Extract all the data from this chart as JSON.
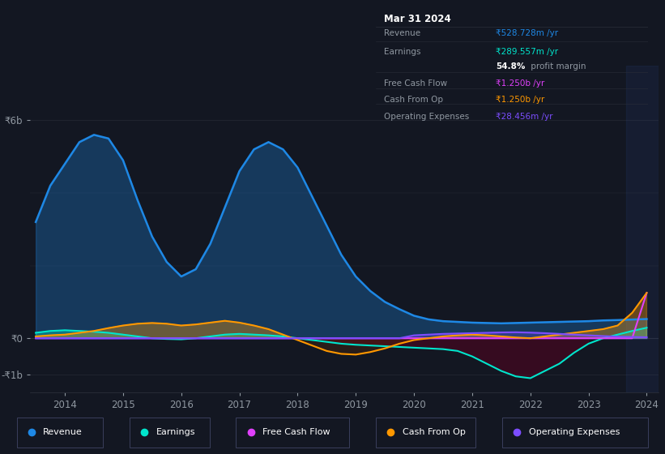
{
  "background_color": "#131722",
  "plot_bg_color": "#131722",
  "chart_bg_color": "#1a2035",
  "grid_color": "#2a2e39",
  "text_color": "#9098a1",
  "title_color": "#ffffff",
  "years": [
    2013.5,
    2013.75,
    2014.0,
    2014.25,
    2014.5,
    2014.75,
    2015.0,
    2015.25,
    2015.5,
    2015.75,
    2016.0,
    2016.25,
    2016.5,
    2016.75,
    2017.0,
    2017.25,
    2017.5,
    2017.75,
    2018.0,
    2018.25,
    2018.5,
    2018.75,
    2019.0,
    2019.25,
    2019.5,
    2019.75,
    2020.0,
    2020.25,
    2020.5,
    2020.75,
    2021.0,
    2021.25,
    2021.5,
    2021.75,
    2022.0,
    2022.25,
    2022.5,
    2022.75,
    2023.0,
    2023.25,
    2023.5,
    2023.75,
    2024.0
  ],
  "revenue": [
    3200000000,
    4200000000,
    4800000000,
    5400000000,
    5600000000,
    5500000000,
    4900000000,
    3800000000,
    2800000000,
    2100000000,
    1700000000,
    1900000000,
    2600000000,
    3600000000,
    4600000000,
    5200000000,
    5400000000,
    5200000000,
    4700000000,
    3900000000,
    3100000000,
    2300000000,
    1700000000,
    1300000000,
    1000000000,
    800000000,
    620000000,
    520000000,
    470000000,
    450000000,
    430000000,
    420000000,
    410000000,
    420000000,
    430000000,
    440000000,
    450000000,
    460000000,
    470000000,
    490000000,
    500000000,
    515000000,
    528728000
  ],
  "earnings": [
    150000000,
    200000000,
    220000000,
    200000000,
    180000000,
    150000000,
    100000000,
    50000000,
    0,
    -20000000,
    -30000000,
    0,
    50000000,
    100000000,
    120000000,
    100000000,
    80000000,
    50000000,
    0,
    -50000000,
    -100000000,
    -150000000,
    -180000000,
    -200000000,
    -220000000,
    -240000000,
    -260000000,
    -280000000,
    -300000000,
    -350000000,
    -500000000,
    -700000000,
    -900000000,
    -1050000000,
    -1100000000,
    -900000000,
    -700000000,
    -400000000,
    -150000000,
    0,
    100000000,
    200000000,
    289557000
  ],
  "free_cash_flow": [
    0,
    0,
    0,
    0,
    0,
    0,
    0,
    0,
    0,
    0,
    0,
    0,
    0,
    0,
    0,
    0,
    0,
    0,
    0,
    0,
    0,
    0,
    0,
    0,
    0,
    0,
    0,
    0,
    0,
    0,
    0,
    0,
    0,
    0,
    0,
    0,
    0,
    0,
    0,
    0,
    0,
    0,
    1250000000
  ],
  "cash_from_op": [
    50000000,
    80000000,
    100000000,
    150000000,
    200000000,
    280000000,
    350000000,
    400000000,
    420000000,
    400000000,
    350000000,
    380000000,
    430000000,
    480000000,
    430000000,
    350000000,
    250000000,
    100000000,
    -50000000,
    -200000000,
    -350000000,
    -430000000,
    -450000000,
    -380000000,
    -280000000,
    -150000000,
    -50000000,
    0,
    50000000,
    80000000,
    100000000,
    80000000,
    50000000,
    20000000,
    0,
    50000000,
    100000000,
    150000000,
    200000000,
    250000000,
    350000000,
    700000000,
    1250000000
  ],
  "operating_expenses": [
    0,
    0,
    0,
    0,
    0,
    0,
    0,
    0,
    0,
    0,
    0,
    0,
    0,
    0,
    0,
    0,
    0,
    0,
    0,
    0,
    0,
    0,
    0,
    0,
    0,
    0,
    80000000,
    100000000,
    120000000,
    130000000,
    140000000,
    150000000,
    160000000,
    165000000,
    155000000,
    140000000,
    120000000,
    100000000,
    80000000,
    60000000,
    45000000,
    35000000,
    28456000
  ],
  "revenue_color": "#1e88e5",
  "earnings_color": "#00e5cc",
  "free_cash_flow_color": "#e040fb",
  "cash_from_op_color": "#ff9800",
  "operating_expenses_color": "#7c4dff",
  "yticks_vals": [
    -1000000000,
    0,
    6000000000
  ],
  "ytick_labels": [
    "-₹1b",
    "₹0",
    "₹6b"
  ],
  "xtick_years": [
    2014,
    2015,
    2016,
    2017,
    2018,
    2019,
    2020,
    2021,
    2022,
    2023,
    2024
  ],
  "ylim": [
    -1500000000,
    7500000000
  ],
  "xlim": [
    2013.4,
    2024.2
  ],
  "info_box": {
    "title": "Mar 31 2024",
    "rows": [
      {
        "label": "Revenue",
        "value": "₹528.728m /yr",
        "value_color": "#1e88e5"
      },
      {
        "label": "Earnings",
        "value": "₹289.557m /yr",
        "value_color": "#00e5cc"
      },
      {
        "label": "",
        "value2_bold": "54.8%",
        "value2_rest": " profit margin",
        "value_color": "#ffffff"
      },
      {
        "label": "Free Cash Flow",
        "value": "₹1.250b /yr",
        "value_color": "#e040fb"
      },
      {
        "label": "Cash From Op",
        "value": "₹1.250b /yr",
        "value_color": "#ff9800"
      },
      {
        "label": "Operating Expenses",
        "value": "₹28.456m /yr",
        "value_color": "#7c4dff"
      }
    ]
  },
  "legend": [
    {
      "label": "Revenue",
      "color": "#1e88e5"
    },
    {
      "label": "Earnings",
      "color": "#00e5cc"
    },
    {
      "label": "Free Cash Flow",
      "color": "#e040fb"
    },
    {
      "label": "Cash From Op",
      "color": "#ff9800"
    },
    {
      "label": "Operating Expenses",
      "color": "#7c4dff"
    }
  ]
}
